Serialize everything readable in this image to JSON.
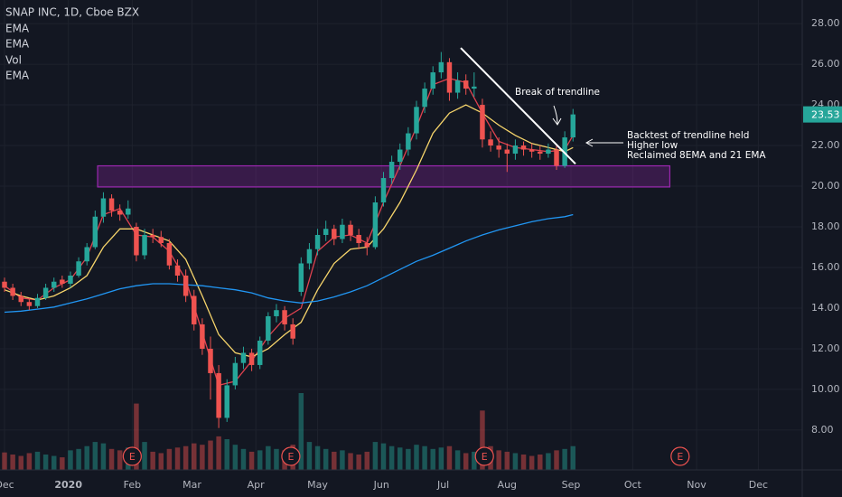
{
  "chart_data": {
    "type": "candlestick",
    "title": "SNAP INC, 1D, Cboe BZX",
    "indicators": [
      "EMA",
      "EMA",
      "Vol",
      "EMA"
    ],
    "xlim": [
      -2.2,
      387.3
    ],
    "xticks": [
      {
        "value": 0,
        "label": "Dec"
      },
      {
        "value": 31,
        "label": "2020"
      },
      {
        "value": 62,
        "label": "Feb"
      },
      {
        "value": 91,
        "label": "Mar"
      },
      {
        "value": 122,
        "label": "Apr"
      },
      {
        "value": 152,
        "label": "May"
      },
      {
        "value": 183,
        "label": "Jun"
      },
      {
        "value": 213,
        "label": "Jul"
      },
      {
        "value": 244,
        "label": "Aug"
      },
      {
        "value": 275,
        "label": "Sep"
      },
      {
        "value": 305,
        "label": "Oct"
      },
      {
        "value": 336,
        "label": "Nov"
      },
      {
        "value": 366,
        "label": "Dec"
      }
    ],
    "ylim": [
      6.04,
      29.16
    ],
    "yticks": [
      {
        "value": 8,
        "label": "8.00"
      },
      {
        "value": 10,
        "label": "10.00"
      },
      {
        "value": 12,
        "label": "12.00"
      },
      {
        "value": 14,
        "label": "14.00"
      },
      {
        "value": 16,
        "label": "16.00"
      },
      {
        "value": 18,
        "label": "18.00"
      },
      {
        "value": 20,
        "label": "20.00"
      },
      {
        "value": 22,
        "label": "22.00"
      },
      {
        "value": 24,
        "label": "24.00"
      },
      {
        "value": 26,
        "label": "26.00"
      },
      {
        "value": 28,
        "label": "28.00"
      }
    ],
    "grid": true,
    "up_color": "#26a69a",
    "down_color": "#ef5350",
    "candles": [
      {
        "x": 0,
        "o": 15.3,
        "h": 15.5,
        "l": 14.8,
        "c": 15.0,
        "v": 25
      },
      {
        "x": 4,
        "o": 15.0,
        "h": 15.2,
        "l": 14.4,
        "c": 14.6,
        "v": 22
      },
      {
        "x": 8,
        "o": 14.6,
        "h": 14.8,
        "l": 14.1,
        "c": 14.3,
        "v": 20
      },
      {
        "x": 12,
        "o": 14.3,
        "h": 14.5,
        "l": 13.9,
        "c": 14.1,
        "v": 24
      },
      {
        "x": 16,
        "o": 14.1,
        "h": 14.7,
        "l": 14.0,
        "c": 14.5,
        "v": 26
      },
      {
        "x": 20,
        "o": 14.5,
        "h": 15.2,
        "l": 14.4,
        "c": 15.0,
        "v": 22
      },
      {
        "x": 24,
        "o": 15.0,
        "h": 15.5,
        "l": 14.8,
        "c": 15.3,
        "v": 20
      },
      {
        "x": 28,
        "o": 15.4,
        "h": 15.6,
        "l": 15.0,
        "c": 15.2,
        "v": 18
      },
      {
        "x": 32,
        "o": 15.2,
        "h": 15.8,
        "l": 15.0,
        "c": 15.6,
        "v": 28
      },
      {
        "x": 36,
        "o": 15.6,
        "h": 16.5,
        "l": 15.5,
        "c": 16.3,
        "v": 30
      },
      {
        "x": 40,
        "o": 16.3,
        "h": 17.2,
        "l": 16.1,
        "c": 17.0,
        "v": 34
      },
      {
        "x": 44,
        "o": 17.0,
        "h": 18.8,
        "l": 16.9,
        "c": 18.5,
        "v": 40
      },
      {
        "x": 48,
        "o": 18.5,
        "h": 19.7,
        "l": 18.2,
        "c": 19.4,
        "v": 38
      },
      {
        "x": 52,
        "o": 19.4,
        "h": 19.6,
        "l": 18.5,
        "c": 18.8,
        "v": 30
      },
      {
        "x": 56,
        "o": 18.8,
        "h": 19.1,
        "l": 18.3,
        "c": 18.6,
        "v": 28
      },
      {
        "x": 60,
        "o": 18.6,
        "h": 19.3,
        "l": 18.4,
        "c": 18.9,
        "v": 32
      },
      {
        "x": 64,
        "o": 18.0,
        "h": 18.2,
        "l": 16.3,
        "c": 16.6,
        "v": 95
      },
      {
        "x": 68,
        "o": 16.6,
        "h": 17.9,
        "l": 16.4,
        "c": 17.6,
        "v": 40
      },
      {
        "x": 72,
        "o": 17.6,
        "h": 17.9,
        "l": 17.2,
        "c": 17.5,
        "v": 26
      },
      {
        "x": 76,
        "o": 17.5,
        "h": 17.8,
        "l": 17.0,
        "c": 17.2,
        "v": 24
      },
      {
        "x": 80,
        "o": 17.2,
        "h": 17.4,
        "l": 15.9,
        "c": 16.1,
        "v": 30
      },
      {
        "x": 84,
        "o": 16.1,
        "h": 16.4,
        "l": 15.3,
        "c": 15.6,
        "v": 32
      },
      {
        "x": 88,
        "o": 15.6,
        "h": 15.9,
        "l": 14.3,
        "c": 14.6,
        "v": 34
      },
      {
        "x": 92,
        "o": 14.6,
        "h": 14.9,
        "l": 12.9,
        "c": 13.2,
        "v": 38
      },
      {
        "x": 96,
        "o": 13.2,
        "h": 13.5,
        "l": 11.7,
        "c": 12.0,
        "v": 36
      },
      {
        "x": 100,
        "o": 12.0,
        "h": 12.6,
        "l": 9.5,
        "c": 10.8,
        "v": 42
      },
      {
        "x": 104,
        "o": 10.8,
        "h": 11.2,
        "l": 8.1,
        "c": 8.6,
        "v": 48
      },
      {
        "x": 108,
        "o": 8.6,
        "h": 10.5,
        "l": 8.4,
        "c": 10.2,
        "v": 44
      },
      {
        "x": 112,
        "o": 10.2,
        "h": 11.6,
        "l": 10.0,
        "c": 11.3,
        "v": 36
      },
      {
        "x": 116,
        "o": 11.3,
        "h": 12.1,
        "l": 11.0,
        "c": 11.8,
        "v": 30
      },
      {
        "x": 120,
        "o": 11.8,
        "h": 12.0,
        "l": 10.9,
        "c": 11.2,
        "v": 26
      },
      {
        "x": 124,
        "o": 11.2,
        "h": 12.6,
        "l": 11.0,
        "c": 12.4,
        "v": 28
      },
      {
        "x": 128,
        "o": 12.4,
        "h": 13.8,
        "l": 12.2,
        "c": 13.6,
        "v": 34
      },
      {
        "x": 132,
        "o": 13.6,
        "h": 14.2,
        "l": 13.3,
        "c": 13.9,
        "v": 30
      },
      {
        "x": 136,
        "o": 13.9,
        "h": 14.1,
        "l": 12.9,
        "c": 13.2,
        "v": 28
      },
      {
        "x": 140,
        "o": 13.2,
        "h": 13.5,
        "l": 12.2,
        "c": 12.5,
        "v": 36
      },
      {
        "x": 144,
        "o": 14.8,
        "h": 16.5,
        "l": 14.6,
        "c": 16.2,
        "v": 110
      },
      {
        "x": 148,
        "o": 16.2,
        "h": 17.2,
        "l": 15.9,
        "c": 16.9,
        "v": 40
      },
      {
        "x": 152,
        "o": 16.9,
        "h": 17.9,
        "l": 16.6,
        "c": 17.6,
        "v": 34
      },
      {
        "x": 156,
        "o": 17.6,
        "h": 18.3,
        "l": 17.3,
        "c": 17.9,
        "v": 30
      },
      {
        "x": 160,
        "o": 17.9,
        "h": 18.1,
        "l": 17.1,
        "c": 17.4,
        "v": 26
      },
      {
        "x": 164,
        "o": 17.4,
        "h": 18.4,
        "l": 17.2,
        "c": 18.1,
        "v": 28
      },
      {
        "x": 168,
        "o": 18.1,
        "h": 18.3,
        "l": 17.3,
        "c": 17.6,
        "v": 24
      },
      {
        "x": 172,
        "o": 17.6,
        "h": 17.9,
        "l": 16.9,
        "c": 17.2,
        "v": 22
      },
      {
        "x": 176,
        "o": 17.2,
        "h": 17.5,
        "l": 16.6,
        "c": 17.0,
        "v": 26
      },
      {
        "x": 180,
        "o": 17.0,
        "h": 19.5,
        "l": 16.9,
        "c": 19.2,
        "v": 40
      },
      {
        "x": 184,
        "o": 19.2,
        "h": 20.7,
        "l": 19.0,
        "c": 20.4,
        "v": 38
      },
      {
        "x": 188,
        "o": 20.4,
        "h": 21.5,
        "l": 20.1,
        "c": 21.2,
        "v": 34
      },
      {
        "x": 192,
        "o": 21.2,
        "h": 22.1,
        "l": 20.8,
        "c": 21.8,
        "v": 32
      },
      {
        "x": 196,
        "o": 21.8,
        "h": 22.9,
        "l": 21.5,
        "c": 22.6,
        "v": 30
      },
      {
        "x": 200,
        "o": 22.6,
        "h": 24.2,
        "l": 22.3,
        "c": 23.9,
        "v": 36
      },
      {
        "x": 204,
        "o": 23.9,
        "h": 25.1,
        "l": 23.6,
        "c": 24.8,
        "v": 34
      },
      {
        "x": 208,
        "o": 24.8,
        "h": 25.9,
        "l": 24.5,
        "c": 25.6,
        "v": 30
      },
      {
        "x": 212,
        "o": 25.6,
        "h": 26.6,
        "l": 25.3,
        "c": 26.1,
        "v": 32
      },
      {
        "x": 216,
        "o": 26.1,
        "h": 26.3,
        "l": 24.2,
        "c": 24.6,
        "v": 34
      },
      {
        "x": 220,
        "o": 24.6,
        "h": 25.6,
        "l": 24.3,
        "c": 25.2,
        "v": 28
      },
      {
        "x": 224,
        "o": 25.2,
        "h": 25.5,
        "l": 24.5,
        "c": 24.8,
        "v": 24
      },
      {
        "x": 228,
        "o": 24.8,
        "h": 25.6,
        "l": 24.4,
        "c": 24.9,
        "v": 26
      },
      {
        "x": 232,
        "o": 24.0,
        "h": 24.3,
        "l": 21.9,
        "c": 22.3,
        "v": 85
      },
      {
        "x": 236,
        "o": 22.3,
        "h": 22.7,
        "l": 21.7,
        "c": 22.0,
        "v": 34
      },
      {
        "x": 240,
        "o": 22.0,
        "h": 22.4,
        "l": 21.4,
        "c": 21.8,
        "v": 28
      },
      {
        "x": 244,
        "o": 21.8,
        "h": 22.1,
        "l": 20.7,
        "c": 21.6,
        "v": 26
      },
      {
        "x": 248,
        "o": 21.6,
        "h": 22.3,
        "l": 21.3,
        "c": 22.0,
        "v": 24
      },
      {
        "x": 252,
        "o": 22.0,
        "h": 22.2,
        "l": 21.5,
        "c": 21.8,
        "v": 22
      },
      {
        "x": 256,
        "o": 21.8,
        "h": 22.1,
        "l": 21.4,
        "c": 21.7,
        "v": 20
      },
      {
        "x": 260,
        "o": 21.7,
        "h": 22.0,
        "l": 21.3,
        "c": 21.6,
        "v": 22
      },
      {
        "x": 264,
        "o": 21.6,
        "h": 22.1,
        "l": 21.4,
        "c": 21.8,
        "v": 24
      },
      {
        "x": 268,
        "o": 21.8,
        "h": 22.0,
        "l": 20.8,
        "c": 21.0,
        "v": 28
      },
      {
        "x": 272,
        "o": 21.0,
        "h": 22.7,
        "l": 20.9,
        "c": 22.4,
        "v": 30
      },
      {
        "x": 276,
        "o": 22.4,
        "h": 23.8,
        "l": 22.2,
        "c": 23.53,
        "v": 34
      }
    ],
    "line_x": [
      0,
      8,
      16,
      24,
      32,
      40,
      48,
      56,
      64,
      72,
      80,
      88,
      96,
      104,
      112,
      120,
      128,
      136,
      144,
      152,
      160,
      168,
      176,
      184,
      192,
      200,
      208,
      216,
      224,
      232,
      240,
      248,
      256,
      264,
      272,
      276
    ],
    "lines": [
      {
        "color": "#e0424f",
        "values": [
          15.1,
          14.5,
          14.4,
          15.0,
          15.4,
          16.5,
          18.6,
          18.9,
          17.6,
          17.5,
          16.8,
          15.4,
          12.8,
          10.2,
          10.4,
          11.4,
          12.6,
          13.5,
          14.0,
          16.8,
          17.5,
          17.6,
          17.2,
          19.2,
          21.0,
          22.9,
          25.0,
          25.3,
          25.1,
          23.6,
          22.2,
          21.9,
          21.8,
          21.7,
          21.8,
          22.5
        ]
      },
      {
        "color": "#f7d56b",
        "values": [
          14.9,
          14.6,
          14.4,
          14.6,
          15.0,
          15.6,
          17.0,
          17.9,
          17.9,
          17.6,
          17.3,
          16.4,
          14.6,
          12.7,
          11.8,
          11.6,
          12.0,
          12.7,
          13.3,
          14.9,
          16.2,
          16.9,
          17.0,
          17.9,
          19.2,
          20.8,
          22.6,
          23.6,
          24.0,
          23.6,
          23.0,
          22.5,
          22.1,
          21.9,
          21.7,
          21.9
        ]
      },
      {
        "color": "#2196f3",
        "values": [
          13.8,
          13.85,
          13.95,
          14.05,
          14.25,
          14.45,
          14.7,
          14.95,
          15.1,
          15.2,
          15.2,
          15.15,
          15.1,
          15.0,
          14.9,
          14.75,
          14.5,
          14.35,
          14.25,
          14.35,
          14.55,
          14.8,
          15.1,
          15.5,
          15.9,
          16.3,
          16.6,
          16.95,
          17.3,
          17.6,
          17.85,
          18.05,
          18.25,
          18.4,
          18.5,
          18.6
        ]
      }
    ],
    "zone": {
      "x": [
        45.2,
        323
      ],
      "y": [
        19.96,
        21.0
      ],
      "color": "#9c27b0"
    },
    "trendline": {
      "x": [
        221.5,
        277.2
      ],
      "y": [
        26.8,
        21.1
      ]
    },
    "earnings": [
      {
        "x": 62,
        "label": "E"
      },
      {
        "x": 139,
        "label": "E"
      },
      {
        "x": 233,
        "label": "E"
      },
      {
        "x": 328,
        "label": "E"
      }
    ],
    "annotations": [
      "Break of trendline",
      "Backtest of trendline held",
      "Higher low",
      "Reclaimed 8EMA and 21 EMA"
    ]
  }
}
